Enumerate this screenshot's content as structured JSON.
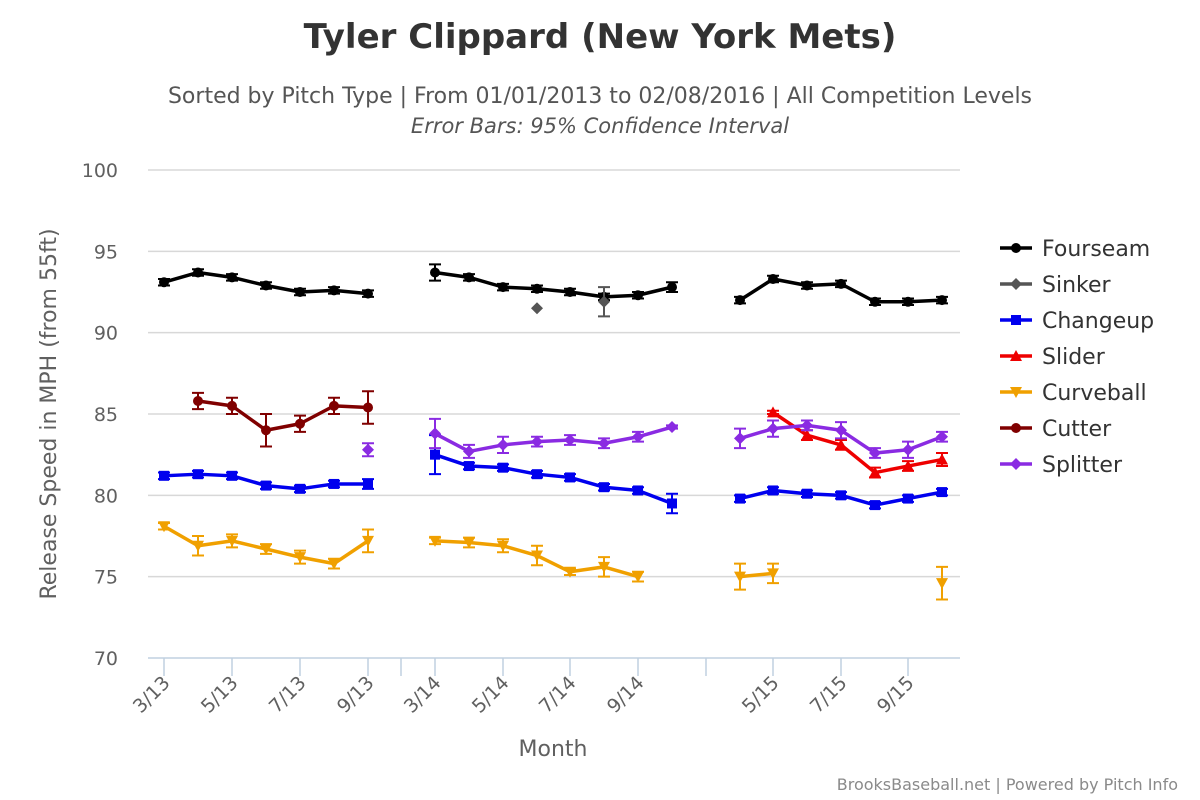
{
  "chart_data": {
    "type": "line",
    "title": "Tyler Clippard (New York Mets)",
    "subtitle": "Sorted by Pitch Type | From 01/01/2013 to 02/08/2016 | All Competition Levels",
    "subtitle2": "Error Bars: 95% Confidence Interval",
    "xlabel": "Month",
    "ylabel": "Release Speed in MPH (from 55ft)",
    "ylim": [
      70,
      100
    ],
    "yticks": [
      70,
      75,
      80,
      85,
      90,
      95,
      100
    ],
    "grid": true,
    "legend_position": "right",
    "credits": "BrooksBaseball.net | Powered by Pitch Info",
    "xcategories": [
      "3/13",
      "4/13",
      "5/13",
      "6/13",
      "7/13",
      "8/13",
      "9/13",
      "3/14",
      "4/14",
      "5/14",
      "6/14",
      "7/14",
      "8/14",
      "9/14",
      "10/14",
      "4/15",
      "5/15",
      "6/15",
      "7/15",
      "8/15",
      "9/15",
      "10/15"
    ],
    "xtick_labels": [
      "3/13",
      "5/13",
      "7/13",
      "9/13",
      "3/14",
      "5/14",
      "7/14",
      "9/14",
      "5/15",
      "7/15",
      "9/15"
    ],
    "series": [
      {
        "name": "Fourseam",
        "color": "#000000",
        "marker": "circle",
        "segments": [
          [
            [
              0,
              93.1,
              0.2
            ],
            [
              1,
              93.7,
              0.2
            ],
            [
              2,
              93.4,
              0.2
            ],
            [
              3,
              92.9,
              0.2
            ],
            [
              4,
              92.5,
              0.2
            ],
            [
              5,
              92.6,
              0.2
            ],
            [
              6,
              92.4,
              0.2
            ]
          ],
          [
            [
              7,
              93.7,
              0.5
            ],
            [
              8,
              93.4,
              0.2
            ],
            [
              9,
              92.8,
              0.2
            ],
            [
              10,
              92.7,
              0.2
            ],
            [
              11,
              92.5,
              0.2
            ],
            [
              12,
              92.2,
              0.2
            ],
            [
              13,
              92.3,
              0.2
            ],
            [
              14,
              92.8,
              0.3
            ]
          ],
          [
            [
              15,
              92.0,
              0.2
            ],
            [
              16,
              93.3,
              0.2
            ],
            [
              17,
              92.9,
              0.2
            ],
            [
              18,
              93.0,
              0.2
            ],
            [
              19,
              91.9,
              0.2
            ],
            [
              20,
              91.9,
              0.2
            ],
            [
              21,
              92.0,
              0.2
            ]
          ]
        ]
      },
      {
        "name": "Sinker",
        "color": "#555555",
        "marker": "diamond",
        "segments": [
          [
            [
              10,
              91.5,
              0
            ]
          ],
          [
            [
              12,
              91.9,
              0.9
            ]
          ]
        ]
      },
      {
        "name": "Changeup",
        "color": "#0000ee",
        "marker": "square",
        "segments": [
          [
            [
              0,
              81.2,
              0.2
            ],
            [
              1,
              81.3,
              0.2
            ],
            [
              2,
              81.2,
              0.2
            ],
            [
              3,
              80.6,
              0.2
            ],
            [
              4,
              80.4,
              0.2
            ],
            [
              5,
              80.7,
              0.2
            ],
            [
              6,
              80.7,
              0.3
            ]
          ],
          [
            [
              7,
              82.5,
              1.2
            ],
            [
              8,
              81.8,
              0.2
            ],
            [
              9,
              81.7,
              0.2
            ],
            [
              10,
              81.3,
              0.2
            ],
            [
              11,
              81.1,
              0.2
            ],
            [
              12,
              80.5,
              0.2
            ],
            [
              13,
              80.3,
              0.2
            ],
            [
              14,
              79.5,
              0.6
            ]
          ],
          [
            [
              15,
              79.8,
              0.2
            ],
            [
              16,
              80.3,
              0.2
            ],
            [
              17,
              80.1,
              0.2
            ],
            [
              18,
              80.0,
              0.2
            ],
            [
              19,
              79.4,
              0.2
            ],
            [
              20,
              79.8,
              0.2
            ],
            [
              21,
              80.2,
              0.2
            ]
          ]
        ]
      },
      {
        "name": "Slider",
        "color": "#ee0000",
        "marker": "triangle-up",
        "segments": [
          [
            [
              16,
              85.1,
              0.1
            ],
            [
              17,
              83.7,
              0.3
            ],
            [
              18,
              83.1,
              0.3
            ],
            [
              19,
              81.4,
              0.3
            ],
            [
              20,
              81.8,
              0.3
            ],
            [
              21,
              82.2,
              0.4
            ]
          ]
        ]
      },
      {
        "name": "Curveball",
        "color": "#f0a000",
        "marker": "triangle-down",
        "segments": [
          [
            [
              0,
              78.1,
              0.2
            ],
            [
              1,
              76.9,
              0.6
            ],
            [
              2,
              77.2,
              0.4
            ],
            [
              3,
              76.7,
              0.3
            ],
            [
              4,
              76.2,
              0.4
            ],
            [
              5,
              75.8,
              0.3
            ],
            [
              6,
              77.2,
              0.7
            ]
          ],
          [
            [
              7,
              77.2,
              0.2
            ],
            [
              8,
              77.1,
              0.3
            ],
            [
              9,
              76.9,
              0.4
            ],
            [
              10,
              76.3,
              0.6
            ],
            [
              11,
              75.3,
              0.2
            ],
            [
              12,
              75.6,
              0.6
            ],
            [
              13,
              75.0,
              0.3
            ]
          ],
          [
            [
              15,
              75.0,
              0.8
            ],
            [
              16,
              75.2,
              0.6
            ]
          ],
          [
            [
              21,
              74.6,
              1.0
            ]
          ]
        ]
      },
      {
        "name": "Cutter",
        "color": "#800000",
        "marker": "circle",
        "segments": [
          [
            [
              1,
              85.8,
              0.5
            ],
            [
              2,
              85.5,
              0.5
            ],
            [
              3,
              84.0,
              1.0
            ],
            [
              4,
              84.4,
              0.5
            ],
            [
              5,
              85.5,
              0.5
            ],
            [
              6,
              85.4,
              1.0
            ]
          ]
        ]
      },
      {
        "name": "Splitter",
        "color": "#8a2be2",
        "marker": "diamond",
        "segments": [
          [
            [
              6,
              82.8,
              0.4
            ]
          ],
          [
            [
              7,
              83.8,
              0.9
            ],
            [
              8,
              82.7,
              0.4
            ],
            [
              9,
              83.1,
              0.5
            ],
            [
              10,
              83.3,
              0.3
            ],
            [
              11,
              83.4,
              0.3
            ],
            [
              12,
              83.2,
              0.3
            ],
            [
              13,
              83.6,
              0.3
            ],
            [
              14,
              84.2,
              0.1
            ]
          ],
          [
            [
              15,
              83.5,
              0.6
            ],
            [
              16,
              84.1,
              0.5
            ],
            [
              17,
              84.3,
              0.3
            ],
            [
              18,
              84.0,
              0.5
            ],
            [
              19,
              82.6,
              0.3
            ],
            [
              20,
              82.8,
              0.5
            ],
            [
              21,
              83.6,
              0.3
            ]
          ]
        ]
      }
    ]
  }
}
